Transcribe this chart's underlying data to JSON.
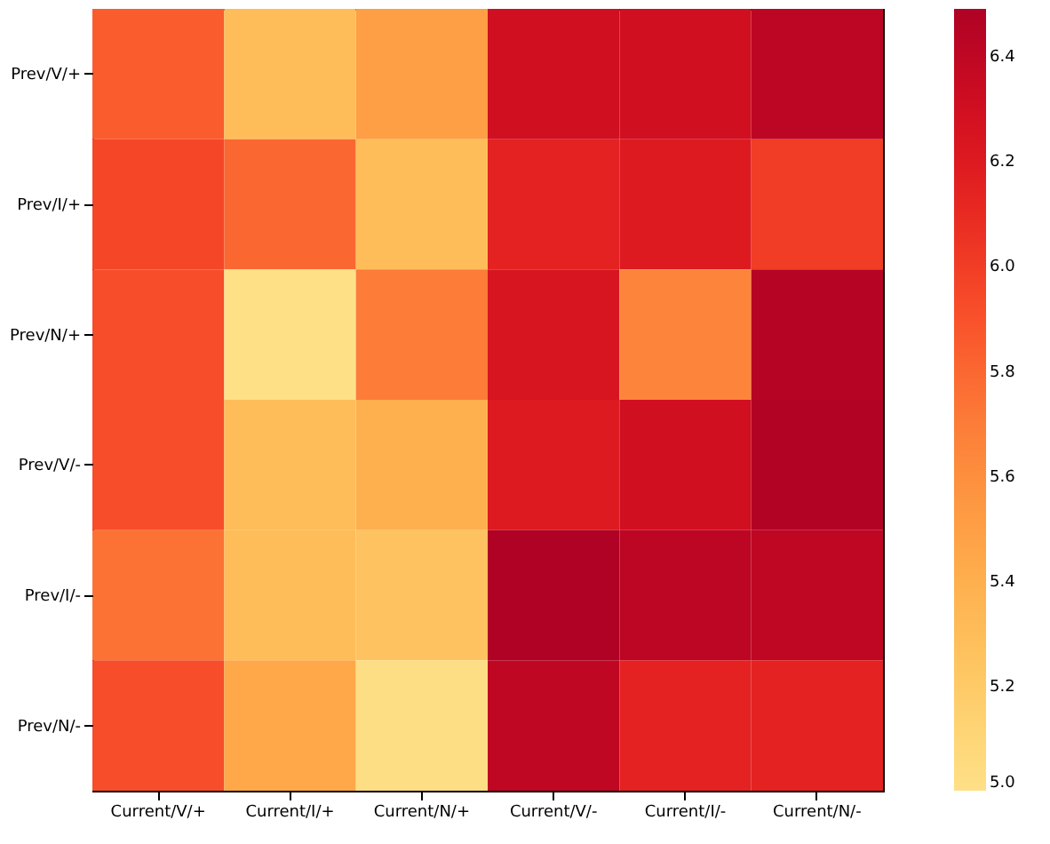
{
  "chart_data": {
    "type": "heatmap",
    "categories": [
      "Current/V/+",
      "Current/I/+",
      "Current/N/+",
      "Current/V/-",
      "Current/I/-",
      "Current/N/-"
    ],
    "y_categories": [
      "Prev/V/+",
      "Prev/I/+",
      "Prev/N/+",
      "Prev/V/-",
      "Prev/I/-",
      "Prev/N/-"
    ],
    "cells": [
      [
        5.85,
        5.3,
        5.5,
        6.3,
        6.3,
        6.42
      ],
      [
        5.95,
        5.8,
        5.3,
        6.15,
        6.2,
        6.0
      ],
      [
        5.92,
        5.0,
        5.7,
        6.25,
        5.65,
        6.45
      ],
      [
        5.92,
        5.3,
        5.4,
        6.2,
        6.3,
        6.47
      ],
      [
        5.75,
        5.3,
        5.25,
        6.49,
        6.42,
        6.4
      ],
      [
        5.92,
        5.45,
        5.02,
        6.4,
        6.15,
        6.15
      ]
    ],
    "clim": [
      5.0,
      6.49
    ],
    "cticks": [
      {
        "value": 5.0,
        "label": "5.0"
      },
      5.2,
      5.4,
      5.6,
      5.8,
      {
        "value": 6.0,
        "label": "6.0"
      },
      6.2,
      6.4
    ]
  }
}
